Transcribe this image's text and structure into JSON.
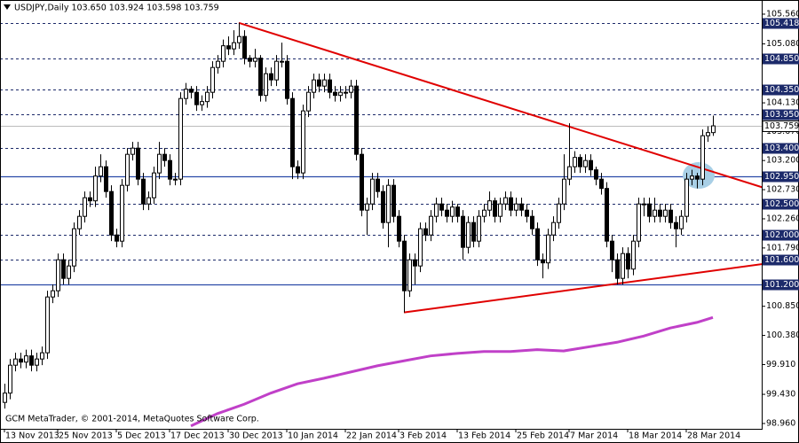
{
  "chart_data": {
    "type": "candlestick",
    "title": "USDJPY,Daily  103.650 103.924 103.598 103.759",
    "footer": "GCM MetaTrader, © 2001-2014, MetaQuotes Software Corp.",
    "categories": [
      "13 Nov 2013",
      null,
      null,
      null,
      null,
      null,
      null,
      null,
      null,
      null,
      "25 Nov 2013",
      null,
      null,
      null,
      null,
      null,
      null,
      null,
      null,
      null,
      null,
      "5 Dec 2013",
      null,
      null,
      null,
      null,
      null,
      null,
      null,
      null,
      null,
      "17 Dec 2013",
      null,
      null,
      null,
      null,
      null,
      null,
      null,
      null,
      null,
      null,
      "30 Dec 2013",
      null,
      null,
      null,
      null,
      null,
      null,
      null,
      null,
      null,
      null,
      "10 Jan 2014",
      null,
      null,
      null,
      null,
      null,
      null,
      null,
      null,
      null,
      null,
      "22 Jan 2014",
      null,
      null,
      null,
      null,
      null,
      null,
      null,
      null,
      null,
      "3 Feb 2014",
      null,
      null,
      null,
      null,
      null,
      null,
      null,
      null,
      null,
      null,
      "13 Feb 2014",
      null,
      null,
      null,
      null,
      null,
      null,
      null,
      null,
      null,
      null,
      "25 Feb 2014",
      null,
      null,
      null,
      null,
      null,
      null,
      null,
      null,
      null,
      "7 Mar 2014",
      null,
      null,
      null,
      null,
      null,
      null,
      null,
      null,
      null,
      null,
      "18 Mar 2014",
      null,
      null,
      null,
      null,
      null,
      null,
      null,
      null,
      null,
      null,
      "28 Mar 2014",
      null,
      null,
      null,
      null,
      null
    ],
    "ohlc": [
      [
        99.3,
        99.6,
        99.2,
        99.45
      ],
      [
        99.45,
        100.0,
        99.35,
        99.9
      ],
      [
        99.9,
        100.1,
        99.8,
        100.0
      ],
      [
        100.0,
        100.1,
        99.85,
        99.95
      ],
      [
        99.95,
        100.15,
        99.85,
        100.05
      ],
      [
        100.05,
        100.15,
        99.8,
        99.9
      ],
      [
        99.9,
        100.1,
        99.8,
        100.0
      ],
      [
        100.0,
        100.2,
        99.9,
        100.1
      ],
      [
        100.1,
        101.1,
        100.0,
        101.0
      ],
      [
        101.0,
        101.2,
        100.9,
        101.1
      ],
      [
        101.1,
        101.7,
        101.0,
        101.6
      ],
      [
        101.6,
        101.7,
        101.2,
        101.3
      ],
      [
        101.3,
        101.6,
        101.2,
        101.5
      ],
      [
        101.5,
        102.2,
        101.4,
        102.1
      ],
      [
        102.1,
        102.4,
        102.0,
        102.3
      ],
      [
        102.3,
        102.7,
        102.2,
        102.6
      ],
      [
        102.6,
        102.7,
        102.45,
        102.55
      ],
      [
        102.55,
        103.1,
        102.45,
        102.95
      ],
      [
        102.95,
        103.3,
        102.85,
        103.1
      ],
      [
        103.1,
        103.2,
        102.6,
        102.7
      ],
      [
        102.7,
        102.8,
        101.9,
        102.0
      ],
      [
        102.0,
        102.1,
        101.8,
        101.9
      ],
      [
        101.9,
        102.9,
        101.8,
        102.8
      ],
      [
        102.8,
        103.4,
        102.7,
        103.3
      ],
      [
        103.3,
        103.5,
        103.2,
        103.4
      ],
      [
        103.4,
        103.5,
        102.8,
        102.9
      ],
      [
        102.9,
        103.0,
        102.4,
        102.5
      ],
      [
        102.5,
        102.7,
        102.4,
        102.6
      ],
      [
        102.6,
        103.1,
        102.5,
        103.0
      ],
      [
        103.0,
        103.5,
        102.9,
        103.3
      ],
      [
        103.3,
        103.4,
        103.1,
        103.2
      ],
      [
        103.2,
        103.3,
        102.8,
        102.9
      ],
      [
        102.9,
        103.0,
        102.8,
        102.9
      ],
      [
        102.9,
        104.3,
        102.8,
        104.2
      ],
      [
        104.2,
        104.45,
        104.1,
        104.35
      ],
      [
        104.35,
        104.4,
        104.2,
        104.3
      ],
      [
        104.3,
        104.4,
        104.0,
        104.1
      ],
      [
        104.1,
        104.25,
        104.0,
        104.15
      ],
      [
        104.15,
        104.4,
        104.05,
        104.3
      ],
      [
        104.3,
        104.8,
        104.2,
        104.7
      ],
      [
        104.7,
        104.9,
        104.6,
        104.8
      ],
      [
        104.8,
        105.15,
        104.7,
        105.05
      ],
      [
        105.05,
        105.2,
        104.9,
        105.0
      ],
      [
        105.0,
        105.3,
        104.9,
        105.1
      ],
      [
        105.1,
        105.42,
        105.0,
        105.2
      ],
      [
        105.2,
        105.3,
        104.75,
        104.85
      ],
      [
        104.85,
        104.9,
        104.7,
        104.8
      ],
      [
        104.8,
        105.0,
        104.7,
        104.85
      ],
      [
        104.85,
        104.9,
        104.15,
        104.25
      ],
      [
        104.25,
        104.7,
        104.15,
        104.6
      ],
      [
        104.6,
        104.7,
        104.4,
        104.5
      ],
      [
        104.5,
        104.9,
        104.4,
        104.8
      ],
      [
        104.8,
        105.1,
        104.7,
        104.8
      ],
      [
        104.8,
        104.9,
        104.1,
        104.2
      ],
      [
        104.2,
        104.3,
        102.9,
        103.1
      ],
      [
        103.1,
        103.2,
        102.9,
        103.0
      ],
      [
        103.0,
        104.1,
        102.9,
        104.0
      ],
      [
        104.0,
        104.4,
        103.9,
        104.3
      ],
      [
        104.3,
        104.6,
        104.2,
        104.5
      ],
      [
        104.5,
        104.6,
        104.3,
        104.4
      ],
      [
        104.4,
        104.6,
        104.3,
        104.5
      ],
      [
        104.5,
        104.6,
        104.2,
        104.3
      ],
      [
        104.3,
        104.4,
        104.15,
        104.25
      ],
      [
        104.25,
        104.4,
        104.15,
        104.3
      ],
      [
        104.3,
        104.4,
        104.2,
        104.3
      ],
      [
        104.3,
        104.5,
        104.2,
        104.4
      ],
      [
        104.4,
        104.5,
        103.2,
        103.3
      ],
      [
        103.3,
        103.4,
        102.3,
        102.4
      ],
      [
        102.4,
        102.6,
        102.0,
        102.5
      ],
      [
        102.5,
        103.0,
        102.4,
        102.9
      ],
      [
        102.9,
        103.0,
        102.6,
        102.7
      ],
      [
        102.7,
        102.8,
        102.1,
        102.2
      ],
      [
        102.2,
        102.9,
        101.8,
        102.8
      ],
      [
        102.8,
        102.9,
        102.2,
        102.3
      ],
      [
        102.3,
        102.4,
        101.8,
        101.9
      ],
      [
        101.9,
        102.0,
        100.75,
        101.1
      ],
      [
        101.1,
        101.7,
        101.0,
        101.6
      ],
      [
        101.6,
        101.7,
        101.2,
        101.5
      ],
      [
        101.5,
        102.2,
        101.4,
        102.1
      ],
      [
        102.1,
        102.2,
        101.9,
        102.0
      ],
      [
        102.0,
        102.4,
        101.9,
        102.3
      ],
      [
        102.3,
        102.6,
        102.2,
        102.5
      ],
      [
        102.5,
        102.6,
        102.3,
        102.4
      ],
      [
        102.4,
        102.5,
        102.2,
        102.3
      ],
      [
        102.3,
        102.55,
        102.2,
        102.45
      ],
      [
        102.45,
        102.5,
        102.2,
        102.3
      ],
      [
        102.3,
        102.4,
        101.6,
        101.8
      ],
      [
        101.8,
        102.3,
        101.7,
        102.2
      ],
      [
        102.2,
        102.3,
        101.8,
        101.9
      ],
      [
        101.9,
        102.4,
        101.8,
        102.3
      ],
      [
        102.3,
        102.5,
        102.2,
        102.4
      ],
      [
        102.4,
        102.7,
        102.3,
        102.55
      ],
      [
        102.55,
        102.6,
        102.2,
        102.3
      ],
      [
        102.3,
        102.6,
        102.2,
        102.5
      ],
      [
        102.5,
        102.7,
        102.4,
        102.6
      ],
      [
        102.6,
        102.7,
        102.3,
        102.4
      ],
      [
        102.4,
        102.6,
        102.3,
        102.5
      ],
      [
        102.5,
        102.6,
        102.3,
        102.4
      ],
      [
        102.4,
        102.5,
        102.2,
        102.3
      ],
      [
        102.3,
        102.4,
        102.0,
        102.1
      ],
      [
        102.1,
        102.2,
        101.5,
        101.6
      ],
      [
        101.6,
        101.7,
        101.3,
        101.55
      ],
      [
        101.55,
        102.1,
        101.45,
        102.0
      ],
      [
        102.0,
        102.3,
        101.9,
        102.2
      ],
      [
        102.2,
        102.6,
        102.1,
        102.5
      ],
      [
        102.5,
        103.3,
        102.4,
        102.9
      ],
      [
        102.9,
        103.8,
        102.8,
        103.1
      ],
      [
        103.1,
        103.35,
        103.0,
        103.25
      ],
      [
        103.25,
        103.3,
        103.0,
        103.1
      ],
      [
        103.1,
        103.3,
        103.0,
        103.2
      ],
      [
        103.2,
        103.3,
        102.95,
        103.05
      ],
      [
        103.05,
        103.1,
        102.8,
        102.9
      ],
      [
        102.9,
        103.0,
        102.65,
        102.75
      ],
      [
        102.75,
        102.85,
        101.8,
        101.9
      ],
      [
        101.9,
        102.0,
        101.4,
        101.6
      ],
      [
        101.6,
        101.7,
        101.2,
        101.3
      ],
      [
        101.3,
        101.8,
        101.2,
        101.7
      ],
      [
        101.7,
        101.8,
        101.3,
        101.45
      ],
      [
        101.45,
        102.0,
        101.35,
        101.9
      ],
      [
        101.9,
        102.6,
        101.8,
        102.5
      ],
      [
        102.5,
        102.6,
        102.3,
        102.5
      ],
      [
        102.5,
        102.6,
        102.2,
        102.3
      ],
      [
        102.3,
        102.6,
        102.2,
        102.4
      ],
      [
        102.4,
        102.5,
        102.2,
        102.3
      ],
      [
        102.3,
        102.5,
        102.2,
        102.4
      ],
      [
        102.4,
        102.5,
        102.1,
        102.2
      ],
      [
        102.2,
        102.3,
        101.8,
        102.1
      ],
      [
        102.1,
        102.4,
        102.0,
        102.3
      ],
      [
        102.3,
        103.0,
        102.2,
        102.9
      ],
      [
        102.9,
        103.05,
        102.8,
        102.95
      ],
      [
        102.95,
        103.0,
        102.75,
        102.9
      ],
      [
        102.9,
        103.7,
        102.8,
        103.6
      ],
      [
        103.6,
        103.75,
        103.5,
        103.65
      ],
      [
        103.65,
        103.924,
        103.598,
        103.759
      ]
    ],
    "ylim": [
      98.874,
      105.731
    ],
    "yticks": [
      {
        "value": 105.56,
        "label": "105.560"
      },
      {
        "value": 105.08,
        "label": "105.080"
      },
      {
        "value": 104.13,
        "label": "104.130"
      },
      {
        "value": 103.67,
        "label": "103.670"
      },
      {
        "value": 103.2,
        "label": "103.200"
      },
      {
        "value": 102.73,
        "label": "102.730"
      },
      {
        "value": 102.26,
        "label": "102.260"
      },
      {
        "value": 101.79,
        "label": "101.790"
      },
      {
        "value": 100.85,
        "label": "100.850"
      },
      {
        "value": 100.38,
        "label": "100.380"
      },
      {
        "value": 99.91,
        "label": "99.910"
      },
      {
        "value": 99.43,
        "label": "99.430"
      },
      {
        "value": 98.96,
        "label": "98.960"
      }
    ],
    "levels": [
      {
        "value": 105.418,
        "label": "105.418",
        "style": "dashed"
      },
      {
        "value": 104.85,
        "label": "104.850",
        "style": "dashed"
      },
      {
        "value": 104.35,
        "label": "104.350",
        "style": "dashed"
      },
      {
        "value": 103.95,
        "label": "103.950",
        "style": "dashed"
      },
      {
        "value": 103.4,
        "label": "103.400",
        "style": "dashed"
      },
      {
        "value": 102.95,
        "label": "102.950",
        "style": "solid"
      },
      {
        "value": 102.5,
        "label": "102.500",
        "style": "dashed"
      },
      {
        "value": 102.0,
        "label": "102.000",
        "style": "dashed"
      },
      {
        "value": 101.6,
        "label": "101.600",
        "style": "dashed"
      },
      {
        "value": 101.2,
        "label": "101.200",
        "style": "solid"
      }
    ],
    "last": {
      "value": 103.759,
      "label": "103.759"
    },
    "trendlines": [
      {
        "color": "#e00000",
        "x": [
          44,
          142.2
        ],
        "values": [
          105.42,
          102.77
        ]
      },
      {
        "color": "#e00000",
        "x": [
          75,
          142.2
        ],
        "values": [
          100.75,
          101.53
        ]
      }
    ],
    "ma": {
      "color": "#c040c8",
      "x": [
        35,
        40,
        45,
        50,
        55,
        60,
        65,
        70,
        75,
        80,
        85,
        90,
        95,
        100,
        105,
        110,
        115,
        120,
        125,
        130,
        133
      ],
      "values": [
        98.92,
        99.12,
        99.27,
        99.45,
        99.6,
        99.69,
        99.79,
        99.89,
        99.97,
        100.05,
        100.09,
        100.12,
        100.12,
        100.15,
        100.13,
        100.2,
        100.27,
        100.37,
        100.5,
        100.59,
        100.67
      ]
    }
  }
}
